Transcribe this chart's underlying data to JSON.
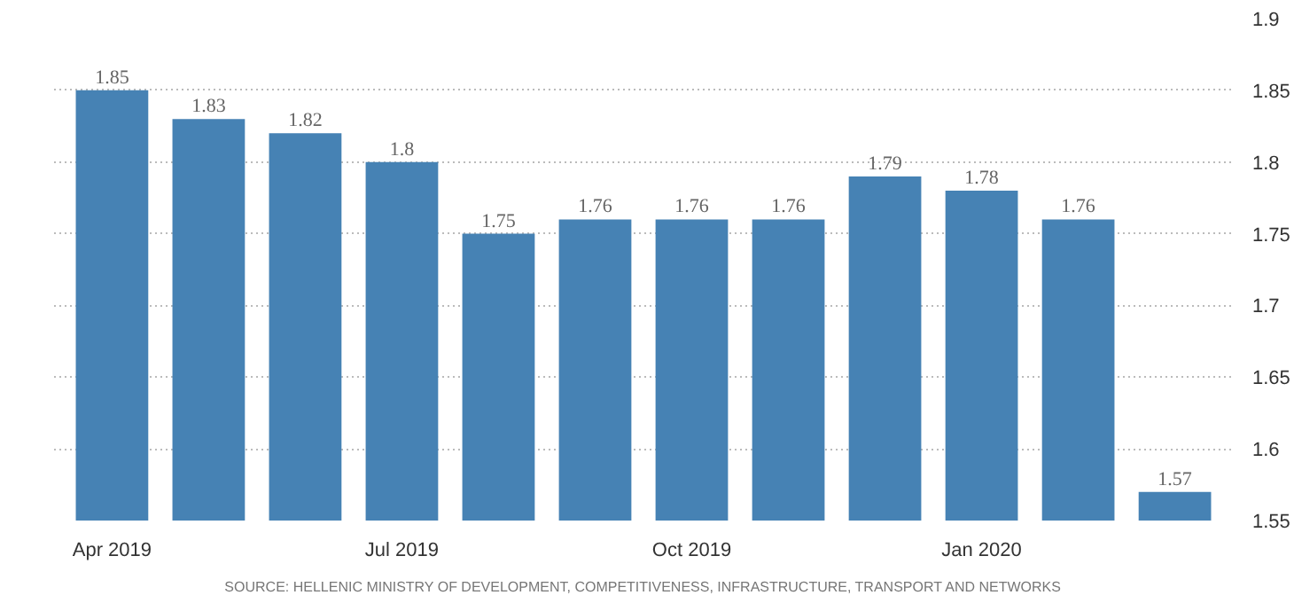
{
  "chart_data": {
    "type": "bar",
    "categories": [
      "Apr 2019",
      null,
      null,
      "Jul 2019",
      null,
      null,
      "Oct 2019",
      null,
      null,
      "Jan 2020",
      null,
      null
    ],
    "values": [
      1.85,
      1.83,
      1.82,
      1.8,
      1.75,
      1.76,
      1.76,
      1.76,
      1.79,
      1.78,
      1.76,
      1.57
    ],
    "color": "#4682b4",
    "ylim": [
      1.55,
      1.9
    ],
    "yticks": [
      1.55,
      1.6,
      1.65,
      1.7,
      1.75,
      1.8,
      1.85,
      1.9
    ],
    "grid": "y",
    "data_labels": true,
    "annotations": [
      "SOURCE: HELLENIC MINISTRY OF DEVELOPMENT, COMPETITIVENESS, INFRASTRUCTURE, TRANSPORT AND NETWORKS"
    ]
  }
}
